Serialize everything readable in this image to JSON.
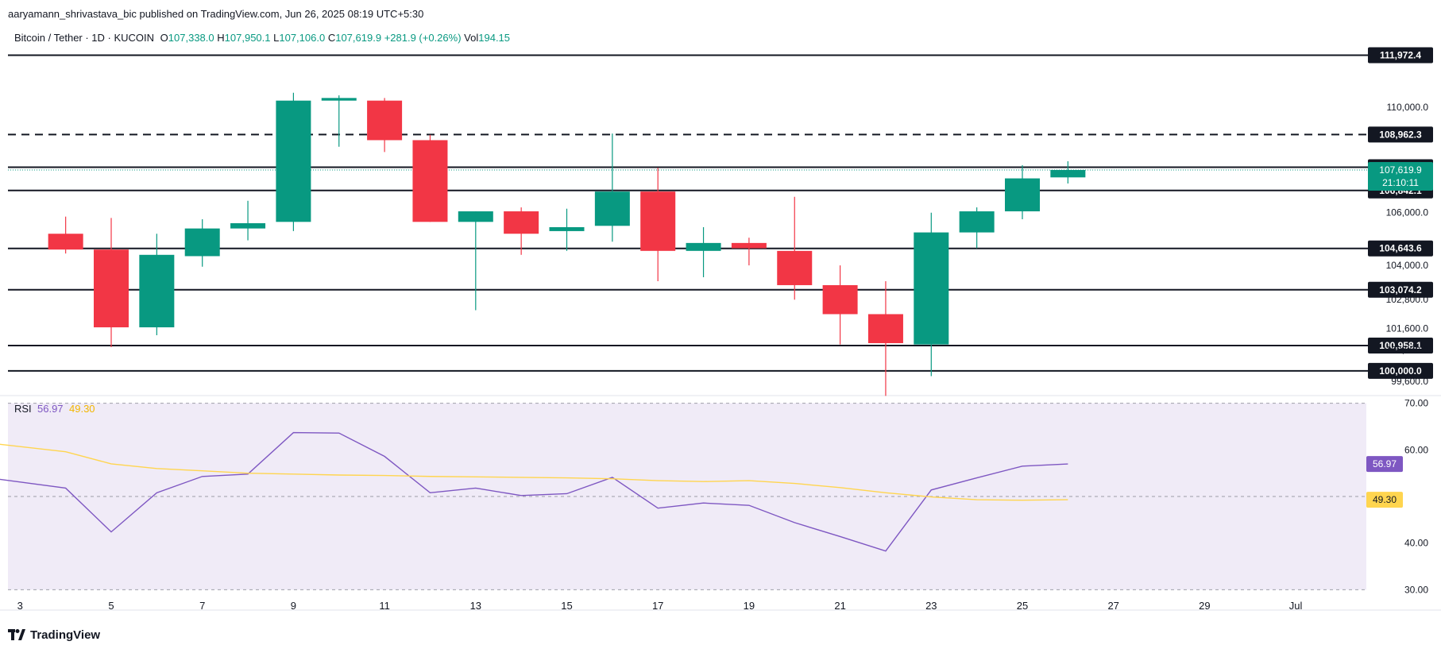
{
  "publisher_line": "aaryamann_shrivastava_bic published on TradingView.com, Jun 26, 2025 08:19 UTC+5:30",
  "legend": {
    "symbol": "Bitcoin / Tether · 1D · KUCOIN",
    "o_label": "O",
    "o_value": "107,338.0",
    "h_label": "H",
    "h_value": "107,950.1",
    "l_label": "L",
    "l_value": "107,106.0",
    "c_label": "C",
    "c_value": "107,619.9",
    "change": "+281.9 (+0.26%)",
    "vol_label": "Vol",
    "vol_value": "194.15"
  },
  "rsi_legend": {
    "label": "RSI",
    "rsi_value": "56.97",
    "ma_value": "49.30"
  },
  "footer": {
    "brand": "TradingView"
  },
  "colors": {
    "up": "#089981",
    "down": "#f23645",
    "rsi_line": "#7e57c2",
    "rsi_ma": "#ffd54f",
    "rsi_band": "#ede7f6",
    "level_line": "#131722"
  },
  "chart_data": [
    {
      "type": "candlestick",
      "x_ticks": [
        "3",
        "5",
        "7",
        "9",
        "11",
        "13",
        "15",
        "17",
        "19",
        "21",
        "23",
        "25",
        "27",
        "29",
        "Jul"
      ],
      "y_ticks": [
        "110,000.0",
        "106,000.0",
        "104,000.0",
        "101,600.0",
        "100,800.0",
        "99,600.0"
      ],
      "y_ticks_partial": [
        "102,800.0"
      ],
      "ylim": [
        99000,
        112500
      ],
      "candles": [
        {
          "date": "2",
          "open": 105650,
          "high": 106700,
          "low": 104950,
          "close": 105200
        },
        {
          "date": "4",
          "open": 105200,
          "high": 105850,
          "low": 104450,
          "close": 104600
        },
        {
          "date": "5",
          "open": 104600,
          "high": 105800,
          "low": 100900,
          "close": 101650
        },
        {
          "date": "6",
          "open": 101650,
          "high": 105200,
          "low": 101350,
          "close": 104400
        },
        {
          "date": "7",
          "open": 104350,
          "high": 105750,
          "low": 103950,
          "close": 105400
        },
        {
          "date": "8",
          "open": 105400,
          "high": 106450,
          "low": 104950,
          "close": 105600
        },
        {
          "date": "9",
          "open": 105650,
          "high": 110550,
          "low": 105300,
          "close": 110250
        },
        {
          "date": "10",
          "open": 110250,
          "high": 110450,
          "low": 108500,
          "close": 110350
        },
        {
          "date": "11",
          "open": 110250,
          "high": 110350,
          "low": 108300,
          "close": 108750
        },
        {
          "date": "12",
          "open": 108750,
          "high": 108950,
          "low": 105650,
          "close": 105650
        },
        {
          "date": "13",
          "open": 105650,
          "high": 106050,
          "low": 102300,
          "close": 106050
        },
        {
          "date": "14",
          "open": 106050,
          "high": 106200,
          "low": 104400,
          "close": 105200
        },
        {
          "date": "15",
          "open": 105300,
          "high": 106150,
          "low": 104550,
          "close": 105450
        },
        {
          "date": "16",
          "open": 105500,
          "high": 109000,
          "low": 104900,
          "close": 106800
        },
        {
          "date": "17",
          "open": 106800,
          "high": 107700,
          "low": 103400,
          "close": 104550
        },
        {
          "date": "18",
          "open": 104550,
          "high": 105450,
          "low": 103550,
          "close": 104850
        },
        {
          "date": "19",
          "open": 104850,
          "high": 105050,
          "low": 104000,
          "close": 104650
        },
        {
          "date": "20",
          "open": 104550,
          "high": 106600,
          "low": 102700,
          "close": 103250
        },
        {
          "date": "21",
          "open": 103250,
          "high": 104000,
          "low": 101000,
          "close": 102150
        },
        {
          "date": "22",
          "open": 102150,
          "high": 103400,
          "low": 99050,
          "close": 101050
        },
        {
          "date": "23",
          "open": 101000,
          "high": 106000,
          "low": 99800,
          "close": 105250
        },
        {
          "date": "24",
          "open": 105250,
          "high": 106200,
          "low": 104650,
          "close": 106050
        },
        {
          "date": "25",
          "open": 106050,
          "high": 107800,
          "low": 105750,
          "close": 107300
        },
        {
          "date": "26",
          "open": 107338.0,
          "high": 107950.1,
          "low": 107106.0,
          "close": 107619.9
        }
      ],
      "levels": [
        {
          "value": 111972.4,
          "label": "111,972.4",
          "style": "solid"
        },
        {
          "value": 108962.3,
          "label": "108,962.3",
          "style": "dashed"
        },
        {
          "value": 107724.6,
          "label": "107,724.6",
          "style": "solid"
        },
        {
          "value": 106842.1,
          "label": "106,842.1",
          "style": "solid"
        },
        {
          "value": 104643.6,
          "label": "104,643.6",
          "style": "solid"
        },
        {
          "value": 103074.2,
          "label": "103,074.2",
          "style": "solid"
        },
        {
          "value": 100958.1,
          "label": "100,958.1",
          "style": "solid"
        },
        {
          "value": 100000.0,
          "label": "100,000.0",
          "style": "solid"
        }
      ],
      "last_price": {
        "value": 107619.9,
        "label": "107,619.9",
        "countdown": "21:10:11"
      }
    },
    {
      "type": "line",
      "title": "RSI",
      "ylim": [
        27,
        73
      ],
      "y_ticks": [
        "70.00",
        "60.00",
        "40.00",
        "30.00"
      ],
      "bands": [
        70,
        50,
        30
      ],
      "x": [
        "2",
        "4",
        "5",
        "6",
        "7",
        "8",
        "9",
        "10",
        "11",
        "12",
        "13",
        "14",
        "15",
        "16",
        "17",
        "18",
        "19",
        "20",
        "21",
        "22",
        "23",
        "24",
        "25",
        "26"
      ],
      "series": [
        {
          "name": "RSI",
          "values": [
            54.4,
            51.8,
            42.4,
            50.8,
            54.3,
            54.8,
            63.7,
            63.6,
            58.6,
            50.8,
            51.8,
            50.2,
            50.6,
            54.1,
            47.5,
            48.6,
            48.1,
            44.4,
            41.4,
            38.3,
            51.4,
            54.0,
            56.5,
            56.97
          ]
        },
        {
          "name": "MA",
          "values": [
            61.8,
            59.6,
            57.0,
            56.0,
            55.5,
            55.0,
            54.8,
            54.6,
            54.5,
            54.3,
            54.2,
            54.1,
            54.0,
            53.8,
            53.4,
            53.2,
            53.4,
            52.8,
            51.9,
            50.8,
            49.9,
            49.3,
            49.2,
            49.3
          ]
        }
      ],
      "value_labels": {
        "rsi": "56.97",
        "ma": "49.30"
      }
    }
  ]
}
